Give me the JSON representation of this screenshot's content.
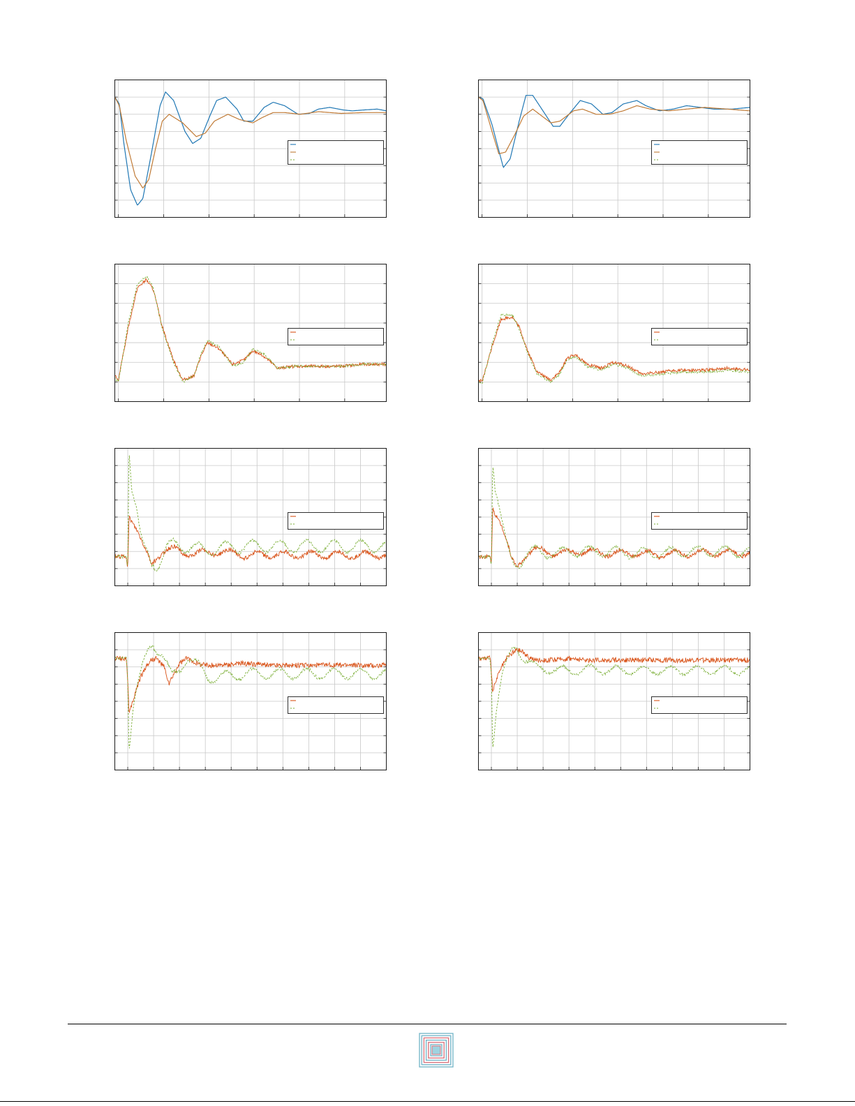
{
  "colors": {
    "blue": "#1f77b4",
    "brown": "#c07a35",
    "orange": "#d95319",
    "green": "#77ac30",
    "grid": "#c8c8c8",
    "axis": "#1a1a1a",
    "logo_outer": "#6fb3c7",
    "logo_inner": "#d9707a"
  },
  "footer": {
    "logo_icon": "concentric-squares-logo-icon"
  },
  "chart_data": [
    {
      "type": "line",
      "grid": true,
      "legend": "center-right",
      "xlim": [
        0,
        6
      ],
      "ylim": [
        0,
        8
      ],
      "x_ticks": [
        0.08,
        1.08,
        2.08,
        3.08,
        4.08,
        5.08,
        6
      ],
      "y_ticks": [
        1,
        2,
        3,
        4,
        5,
        6,
        7
      ],
      "series": [
        {
          "style": "solid",
          "color": "blue",
          "x": [
            0,
            0.1,
            0.2,
            0.35,
            0.5,
            0.62,
            0.8,
            1.0,
            1.12,
            1.3,
            1.55,
            1.72,
            1.9,
            2.1,
            2.25,
            2.45,
            2.7,
            2.85,
            3.05,
            3.3,
            3.5,
            3.75,
            4.05,
            4.3,
            4.5,
            4.75,
            5.05,
            5.25,
            5.5,
            5.8,
            6
          ],
          "y": [
            7,
            6.6,
            4.3,
            1.6,
            0.7,
            1.1,
            3.6,
            6.5,
            7.3,
            6.8,
            5.0,
            4.3,
            4.6,
            5.9,
            6.8,
            7.0,
            6.3,
            5.6,
            5.6,
            6.4,
            6.7,
            6.5,
            6.0,
            6.05,
            6.3,
            6.4,
            6.25,
            6.2,
            6.25,
            6.3,
            6.2
          ]
        },
        {
          "style": "solid",
          "color": "brown",
          "x": [
            0,
            0.1,
            0.25,
            0.45,
            0.62,
            0.75,
            0.9,
            1.05,
            1.2,
            1.5,
            1.8,
            2.0,
            2.2,
            2.5,
            2.75,
            3.05,
            3.25,
            3.5,
            3.75,
            4.1,
            4.5,
            5.0,
            5.5,
            6
          ],
          "y": [
            7,
            6.5,
            4.5,
            2.4,
            1.7,
            2.2,
            4.0,
            5.6,
            6.0,
            5.5,
            4.7,
            4.9,
            5.6,
            6.0,
            5.7,
            5.5,
            5.8,
            6.1,
            6.1,
            6.0,
            6.15,
            6.05,
            6.1,
            6.1
          ]
        },
        {
          "style": "dashed",
          "color": "green",
          "x": [],
          "y": []
        }
      ]
    },
    {
      "type": "line",
      "grid": true,
      "legend": "center-right",
      "xlim": [
        0,
        6
      ],
      "ylim": [
        0,
        8
      ],
      "x_ticks": [
        0.08,
        1.08,
        2.08,
        3.08,
        4.08,
        5.08,
        6
      ],
      "y_ticks": [
        1,
        2,
        3,
        4,
        5,
        6,
        7
      ],
      "series": [
        {
          "style": "solid",
          "color": "blue",
          "x": [
            0,
            0.1,
            0.3,
            0.5,
            0.55,
            0.7,
            0.9,
            1.05,
            1.2,
            1.4,
            1.65,
            1.8,
            2.0,
            2.25,
            2.5,
            2.75,
            2.95,
            3.2,
            3.5,
            3.7,
            4.0,
            4.3,
            4.6,
            4.9,
            5.2,
            5.6,
            6
          ],
          "y": [
            7,
            6.9,
            5.4,
            3.4,
            2.9,
            3.4,
            5.6,
            7.1,
            7.1,
            6.3,
            5.3,
            5.3,
            6.0,
            6.8,
            6.6,
            6.0,
            6.1,
            6.6,
            6.8,
            6.5,
            6.2,
            6.3,
            6.5,
            6.4,
            6.3,
            6.3,
            6.4
          ]
        },
        {
          "style": "solid",
          "color": "brown",
          "x": [
            0,
            0.1,
            0.3,
            0.45,
            0.6,
            0.8,
            1.0,
            1.2,
            1.45,
            1.6,
            1.8,
            2.1,
            2.3,
            2.6,
            2.9,
            3.2,
            3.5,
            3.8,
            4.2,
            4.6,
            5.0,
            5.5,
            6
          ],
          "y": [
            7,
            6.8,
            5.0,
            3.7,
            3.8,
            4.8,
            5.9,
            6.3,
            5.8,
            5.5,
            5.6,
            6.2,
            6.3,
            6.0,
            6.0,
            6.2,
            6.5,
            6.3,
            6.2,
            6.3,
            6.4,
            6.3,
            6.2
          ]
        },
        {
          "style": "dashed",
          "color": "green",
          "x": [],
          "y": []
        }
      ]
    },
    {
      "type": "line",
      "grid": true,
      "legend": "center-right",
      "xlim": [
        0,
        6
      ],
      "ylim": [
        0,
        7
      ],
      "x_ticks": [
        0.08,
        1.08,
        2.08,
        3.08,
        4.08,
        5.08,
        6
      ],
      "y_ticks": [
        1,
        2,
        3,
        4,
        5,
        6
      ],
      "series": [
        {
          "style": "solid",
          "color": "orange",
          "noise": 0.08,
          "x": [
            0,
            0.08,
            0.3,
            0.5,
            0.7,
            0.85,
            1.05,
            1.3,
            1.5,
            1.75,
            1.9,
            2.05,
            2.3,
            2.6,
            2.85,
            3.05,
            3.3,
            3.6,
            4.0,
            4.5,
            5.0,
            5.5,
            6
          ],
          "y": [
            1.3,
            1.1,
            3.8,
            5.8,
            6.2,
            5.7,
            3.8,
            2.1,
            1.1,
            1.3,
            2.3,
            3.0,
            2.7,
            1.9,
            2.1,
            2.6,
            2.3,
            1.7,
            1.8,
            1.8,
            1.8,
            1.9,
            1.9
          ]
        },
        {
          "style": "dashed",
          "color": "green",
          "noise": 0.06,
          "x": [
            0,
            0.08,
            0.3,
            0.5,
            0.7,
            0.85,
            1.05,
            1.3,
            1.5,
            1.75,
            1.9,
            2.05,
            2.3,
            2.6,
            2.85,
            3.05,
            3.3,
            3.6,
            4.0,
            4.5,
            5.0,
            5.5,
            6
          ],
          "y": [
            1.2,
            1.0,
            4.0,
            6.0,
            6.4,
            5.8,
            3.7,
            2.0,
            1.0,
            1.3,
            2.4,
            3.1,
            2.8,
            1.8,
            2.0,
            2.7,
            2.4,
            1.7,
            1.8,
            1.8,
            1.8,
            1.9,
            1.9
          ]
        }
      ]
    },
    {
      "type": "line",
      "grid": true,
      "legend": "center-right",
      "xlim": [
        0,
        6
      ],
      "ylim": [
        0,
        7
      ],
      "x_ticks": [
        0.08,
        1.08,
        2.08,
        3.08,
        4.08,
        5.08,
        6
      ],
      "y_ticks": [
        1,
        2,
        3,
        4,
        5,
        6
      ],
      "series": [
        {
          "style": "solid",
          "color": "orange",
          "noise": 0.08,
          "x": [
            0,
            0.08,
            0.3,
            0.5,
            0.75,
            0.9,
            1.1,
            1.3,
            1.6,
            1.8,
            1.95,
            2.15,
            2.4,
            2.7,
            3.0,
            3.3,
            3.6,
            4.0,
            4.5,
            5.0,
            5.5,
            6
          ],
          "y": [
            1.1,
            1.0,
            2.8,
            4.2,
            4.3,
            3.8,
            2.5,
            1.5,
            1.1,
            1.5,
            2.2,
            2.4,
            1.9,
            1.7,
            2.0,
            1.8,
            1.4,
            1.5,
            1.6,
            1.6,
            1.7,
            1.6
          ]
        },
        {
          "style": "dashed",
          "color": "green",
          "noise": 0.06,
          "x": [
            0,
            0.08,
            0.3,
            0.5,
            0.75,
            0.9,
            1.1,
            1.3,
            1.6,
            1.8,
            1.95,
            2.15,
            2.4,
            2.7,
            3.0,
            3.3,
            3.6,
            4.0,
            4.5,
            5.0,
            5.5,
            6
          ],
          "y": [
            1.0,
            0.9,
            2.9,
            4.4,
            4.4,
            3.7,
            2.4,
            1.4,
            1.0,
            1.4,
            2.1,
            2.3,
            1.8,
            1.6,
            1.9,
            1.7,
            1.3,
            1.4,
            1.5,
            1.5,
            1.6,
            1.5
          ]
        }
      ]
    },
    {
      "type": "line",
      "grid": true,
      "legend": "center-right",
      "xlim": [
        0,
        10.5
      ],
      "ylim": [
        0,
        8
      ],
      "x_ticks": [
        0.5,
        1.5,
        2.5,
        3.5,
        4.5,
        5.5,
        6.5,
        7.5,
        8.5,
        9.5,
        10.5
      ],
      "y_ticks": [
        1,
        2,
        3,
        4,
        5,
        6,
        7
      ],
      "series": [
        {
          "style": "solid",
          "color": "orange",
          "noise": 0.12,
          "ripple": 0.2,
          "x": [
            0,
            0.45,
            0.5,
            0.55,
            0.7,
            0.9,
            1.1,
            1.3,
            1.4,
            1.55,
            1.8,
            2.0,
            2.3,
            2.6,
            3.0,
            3.5,
            4.0,
            4.5,
            5.0,
            6.0,
            7.0,
            8.0,
            9.0,
            10.5
          ],
          "y": [
            1.7,
            1.7,
            1.0,
            4.0,
            3.6,
            3.1,
            2.4,
            1.8,
            1.3,
            1.4,
            2.0,
            2.2,
            2.1,
            1.9,
            1.9,
            1.9,
            2.0,
            1.9,
            1.8,
            1.8,
            1.8,
            1.8,
            1.8,
            1.8
          ]
        },
        {
          "style": "dashed",
          "color": "green",
          "noise": 0.08,
          "ripple": 0.35,
          "x": [
            0,
            0.45,
            0.5,
            0.55,
            0.65,
            0.75,
            0.85,
            1.0,
            1.2,
            1.3,
            1.4,
            1.6,
            1.8,
            2.0,
            2.3,
            2.6,
            3.0,
            3.5,
            4.0,
            5.0,
            6.0,
            7.0,
            8.0,
            9.0,
            10.5
          ],
          "y": [
            1.7,
            1.7,
            1.0,
            7.9,
            5.6,
            5.0,
            4.5,
            3.0,
            2.2,
            1.9,
            1.2,
            1.2,
            1.6,
            2.2,
            2.4,
            2.3,
            2.2,
            2.1,
            2.2,
            2.3,
            2.3,
            2.3,
            2.3,
            2.3,
            2.3
          ]
        }
      ]
    },
    {
      "type": "line",
      "grid": true,
      "legend": "center-right",
      "xlim": [
        0,
        10.5
      ],
      "ylim": [
        0,
        8
      ],
      "x_ticks": [
        0.5,
        1.5,
        2.5,
        3.5,
        4.5,
        5.5,
        6.5,
        7.5,
        8.5,
        9.5,
        10.5
      ],
      "y_ticks": [
        1,
        2,
        3,
        4,
        5,
        6,
        7
      ],
      "series": [
        {
          "style": "solid",
          "color": "orange",
          "noise": 0.12,
          "ripple": 0.2,
          "x": [
            0,
            0.45,
            0.5,
            0.55,
            0.7,
            0.9,
            1.1,
            1.3,
            1.5,
            1.7,
            1.9,
            2.2,
            2.5,
            3.0,
            3.5,
            4.0,
            5.0,
            6.0,
            7.0,
            8.0,
            9.0,
            10.5
          ],
          "y": [
            1.7,
            1.7,
            1.3,
            4.5,
            4.0,
            3.5,
            2.6,
            1.6,
            1.1,
            1.5,
            2.0,
            2.1,
            2.0,
            1.9,
            1.9,
            2.0,
            1.9,
            1.9,
            1.8,
            1.9,
            1.9,
            1.9
          ]
        },
        {
          "style": "dashed",
          "color": "green",
          "noise": 0.08,
          "ripple": 0.3,
          "x": [
            0,
            0.45,
            0.5,
            0.55,
            0.65,
            0.8,
            1.0,
            1.2,
            1.4,
            1.55,
            1.75,
            1.95,
            2.2,
            2.5,
            3.0,
            3.5,
            4.0,
            5.0,
            6.0,
            7.0,
            8.0,
            9.0,
            10.5
          ],
          "y": [
            1.7,
            1.7,
            1.1,
            7.1,
            5.5,
            4.6,
            3.2,
            2.0,
            1.1,
            1.2,
            1.7,
            2.0,
            2.0,
            1.9,
            1.9,
            2.0,
            2.0,
            2.0,
            1.9,
            1.9,
            2.0,
            2.0,
            2.0
          ]
        }
      ]
    },
    {
      "type": "line",
      "grid": true,
      "legend": "center-right",
      "xlim": [
        0,
        10.5
      ],
      "ylim": [
        0,
        8
      ],
      "x_ticks": [
        0.5,
        1.5,
        2.5,
        3.5,
        4.5,
        5.5,
        6.5,
        7.5,
        8.5,
        9.5,
        10.5
      ],
      "y_ticks": [
        1,
        2,
        3,
        4,
        5,
        6,
        7
      ],
      "series": [
        {
          "style": "solid",
          "color": "orange",
          "noise": 0.15,
          "x": [
            0,
            0.45,
            0.5,
            0.55,
            0.7,
            0.85,
            1.0,
            1.2,
            1.4,
            1.6,
            1.9,
            2.1,
            2.3,
            2.5,
            2.8,
            3.2,
            3.6,
            4.0,
            5.0,
            6.0,
            7.0,
            8.0,
            9.0,
            10.5
          ],
          "y": [
            6.5,
            6.5,
            5.2,
            3.2,
            4.0,
            4.8,
            5.4,
            6.0,
            6.4,
            6.5,
            6.0,
            5.0,
            5.6,
            6.2,
            6.5,
            6.2,
            6.1,
            6.1,
            6.2,
            6.1,
            6.1,
            6.1,
            6.1,
            6.1
          ]
        },
        {
          "style": "dashed",
          "color": "green",
          "noise": 0.08,
          "ripple": 0.3,
          "x": [
            0,
            0.45,
            0.5,
            0.55,
            0.7,
            0.9,
            1.1,
            1.3,
            1.5,
            1.8,
            2.0,
            2.2,
            2.5,
            2.8,
            3.2,
            3.6,
            4.0,
            4.5,
            5.0,
            6.0,
            7.0,
            8.0,
            9.0,
            10.5
          ],
          "y": [
            6.5,
            6.5,
            5.2,
            1.0,
            3.5,
            5.2,
            6.4,
            7.1,
            7.2,
            6.9,
            6.2,
            5.4,
            5.8,
            6.6,
            6.1,
            5.4,
            5.4,
            5.5,
            5.6,
            5.6,
            5.6,
            5.6,
            5.6,
            5.6
          ]
        }
      ]
    },
    {
      "type": "line",
      "grid": true,
      "legend": "center-right",
      "xlim": [
        0,
        10.5
      ],
      "ylim": [
        0,
        8
      ],
      "x_ticks": [
        0.5,
        1.5,
        2.5,
        3.5,
        4.5,
        5.5,
        6.5,
        7.5,
        8.5,
        9.5,
        10.5
      ],
      "y_ticks": [
        1,
        2,
        3,
        4,
        5,
        6,
        7
      ],
      "series": [
        {
          "style": "solid",
          "color": "orange",
          "noise": 0.15,
          "x": [
            0,
            0.45,
            0.5,
            0.55,
            0.7,
            0.9,
            1.1,
            1.3,
            1.5,
            1.7,
            1.9,
            2.2,
            2.5,
            3.0,
            3.5,
            4.0,
            5.0,
            6.0,
            7.0,
            8.0,
            9.0,
            10.5
          ],
          "y": [
            6.5,
            6.5,
            5.8,
            4.5,
            5.3,
            6.0,
            6.5,
            6.8,
            7.0,
            6.9,
            6.6,
            6.4,
            6.4,
            6.4,
            6.5,
            6.4,
            6.4,
            6.4,
            6.4,
            6.4,
            6.4,
            6.4
          ]
        },
        {
          "style": "dashed",
          "color": "green",
          "noise": 0.08,
          "ripple": 0.25,
          "x": [
            0,
            0.45,
            0.5,
            0.55,
            0.7,
            0.9,
            1.1,
            1.3,
            1.5,
            1.7,
            2.0,
            2.3,
            2.6,
            3.0,
            3.5,
            4.0,
            4.5,
            5.0,
            6.0,
            7.0,
            8.0,
            9.0,
            10.5
          ],
          "y": [
            6.5,
            6.5,
            5.5,
            1.1,
            3.5,
            5.5,
            6.5,
            7.1,
            7.1,
            6.6,
            6.2,
            5.9,
            5.9,
            5.8,
            5.8,
            5.8,
            5.9,
            5.8,
            5.8,
            5.8,
            5.8,
            5.8,
            5.8
          ]
        }
      ]
    }
  ]
}
